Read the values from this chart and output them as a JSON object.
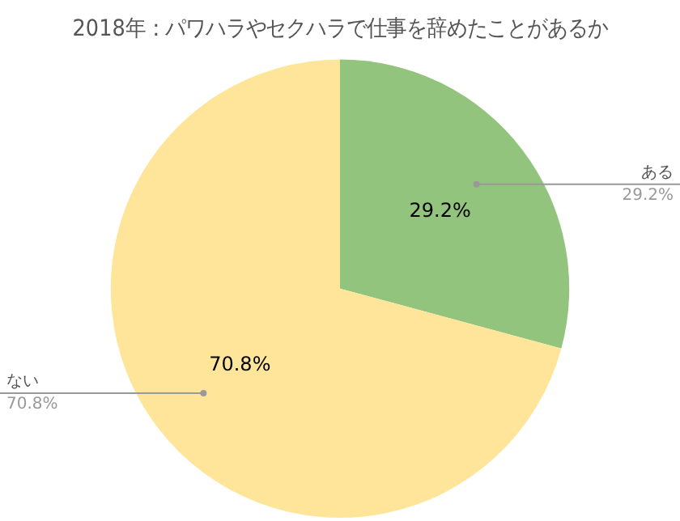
{
  "chart_data": {
    "type": "pie",
    "title": "2018年：パワハラやセクハラで仕事を辞めたことがあるか",
    "categories": [
      "ある",
      "ない"
    ],
    "values": [
      29.2,
      70.8
    ],
    "value_labels": [
      "29.2%",
      "70.8%"
    ],
    "colors": [
      "#93c47d",
      "#ffe599"
    ],
    "legend": false
  }
}
